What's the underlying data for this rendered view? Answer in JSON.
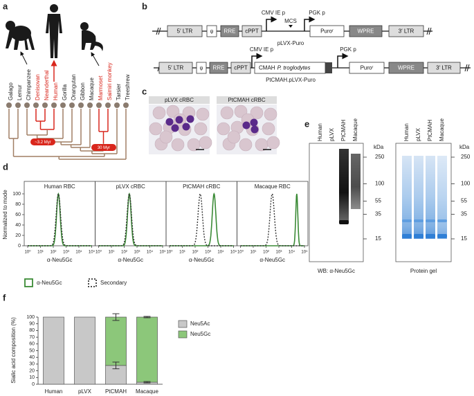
{
  "panel_labels": [
    "a",
    "b",
    "c",
    "d",
    "e",
    "f"
  ],
  "panel_a": {
    "species": [
      {
        "name": "Galago",
        "color": "#222222"
      },
      {
        "name": "Lemur",
        "color": "#222222"
      },
      {
        "name": "Chimpanzee",
        "color": "#222222"
      },
      {
        "name": "Denisovan",
        "color": "#d9261c"
      },
      {
        "name": "Neanderthal",
        "color": "#d9261c"
      },
      {
        "name": "Human",
        "color": "#d9261c"
      },
      {
        "name": "Gorilla",
        "color": "#222222"
      },
      {
        "name": "Orangutan",
        "color": "#222222"
      },
      {
        "name": "Gibbon",
        "color": "#222222"
      },
      {
        "name": "Macaque",
        "color": "#222222"
      },
      {
        "name": "Marmoset",
        "color": "#d9261c"
      },
      {
        "name": "Saimiri monkey",
        "color": "#d9261c"
      },
      {
        "name": "Tarsier",
        "color": "#222222"
      },
      {
        "name": "Treeshrew",
        "color": "#222222"
      }
    ],
    "divergence_labels": [
      "~3.2 Myr",
      "30 Myr"
    ]
  },
  "panel_b": {
    "promoters": [
      "CMV IE p",
      "PGK p"
    ],
    "mcs": "MCS",
    "constructs": [
      {
        "name": "pLVX-Puro",
        "elements": [
          "5′ LTR",
          "ψ",
          "RRE",
          "cPPT",
          "Puroʳ",
          "WPRE",
          "3′ LTR"
        ]
      },
      {
        "name": "PtCMAH.pLVX-Puro",
        "elements": [
          "5′ LTR",
          "ψ",
          "RRE",
          "cPPT",
          "CMAH",
          "Puroʳ",
          "WPRE",
          "3′ LTR"
        ],
        "insert_species": "P. troglodytes"
      }
    ]
  },
  "panel_c": {
    "images": [
      "pLVX cRBC",
      "PtCMAH cRBC"
    ]
  },
  "panel_d": {
    "panels": [
      "Human RBC",
      "pLVX cRBC",
      "PtCMAH cRBC",
      "Macaque RBC"
    ],
    "y_label": "Normalized to mode",
    "x_label": "α-Neu5Gc",
    "ylim": [
      0,
      100
    ],
    "yticks": [
      0,
      20,
      40,
      60,
      80,
      100
    ],
    "xscale": "log",
    "xlim": [
      1,
      100000
    ],
    "xticks": [
      {
        "value": 1,
        "label": "10⁰"
      },
      {
        "value": 10,
        "label": "10¹"
      },
      {
        "value": 100,
        "label": "10²"
      },
      {
        "value": 1000,
        "label": "10³"
      },
      {
        "value": 10000,
        "label": "10⁴"
      },
      {
        "value": 100000,
        "label": "10⁵"
      }
    ],
    "series": [
      {
        "name": "α-Neu5Gc",
        "color": "#3a8a35",
        "peaks": [
          250,
          250,
          3000,
          25000
        ]
      },
      {
        "name": "Secondary",
        "color": "#333333",
        "peaks": [
          250,
          250,
          250,
          300
        ]
      }
    ]
  },
  "panel_e": {
    "lanes": [
      "Human",
      "pLVX",
      "PtCMAH",
      "Macaque"
    ],
    "unit": "kDa",
    "markers": [
      250,
      100,
      55,
      35,
      15
    ],
    "captions": [
      "WB: α-Neu5Gc",
      "Protein gel"
    ]
  },
  "chart_data": {
    "type": "bar",
    "stacked": true,
    "y_label": "Sialic acid composition (%)",
    "categories": [
      "Human",
      "pLVX",
      "PtCMAH",
      "Macaque"
    ],
    "series": [
      {
        "name": "Neu5Ac",
        "color": "#c8c8c8",
        "values": [
          100,
          100,
          28,
          3
        ],
        "errors": [
          null,
          null,
          5,
          1
        ]
      },
      {
        "name": "Neu5Gc",
        "color": "#8cc77a",
        "values": [
          0,
          0,
          72,
          97
        ],
        "errors": [
          null,
          null,
          5,
          1
        ]
      }
    ],
    "ylim": [
      0,
      100
    ],
    "yticks": [
      0,
      10,
      20,
      30,
      40,
      50,
      60,
      70,
      80,
      90,
      100
    ],
    "legend": "right"
  }
}
